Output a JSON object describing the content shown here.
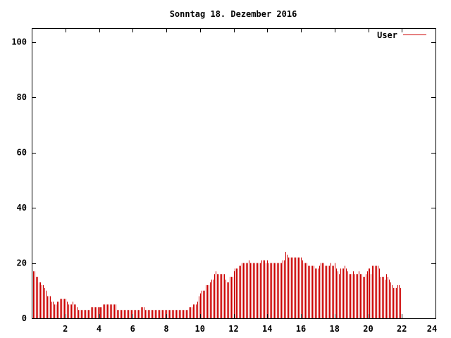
{
  "chart_data": {
    "type": "bar",
    "title": "Sonntag 18. Dezember 2016",
    "xlabel": "",
    "ylabel": "",
    "xlim": [
      0,
      24
    ],
    "ylim": [
      0,
      105
    ],
    "x_ticks": [
      2,
      4,
      6,
      8,
      10,
      12,
      14,
      16,
      18,
      20,
      22,
      24
    ],
    "x_tick_labels": [
      "2",
      "4",
      "6",
      "8",
      "10",
      "12",
      "14",
      "16",
      "18",
      "20",
      "22",
      "24"
    ],
    "y_ticks": [
      0,
      20,
      40,
      60,
      80,
      100
    ],
    "y_tick_labels": [
      "0",
      "20",
      "40",
      "60",
      "80",
      "100"
    ],
    "grid": false,
    "legend_position": "top-right",
    "series": [
      {
        "name": "User",
        "color": "#cc0000",
        "interval_minutes": 5,
        "values": [
          17,
          17,
          15,
          15,
          13,
          13,
          12,
          12,
          11,
          10,
          8,
          8,
          8,
          6,
          6,
          5,
          5,
          6,
          6,
          7,
          7,
          7,
          7,
          7,
          6,
          5,
          5,
          5,
          6,
          5,
          5,
          4,
          3,
          3,
          3,
          3,
          3,
          3,
          3,
          3,
          3,
          4,
          4,
          4,
          4,
          4,
          4,
          4,
          4,
          4,
          5,
          5,
          5,
          5,
          5,
          5,
          5,
          5,
          5,
          5,
          3,
          3,
          3,
          3,
          3,
          3,
          3,
          3,
          3,
          3,
          3,
          3,
          3,
          3,
          3,
          3,
          3,
          4,
          4,
          4,
          3,
          3,
          3,
          3,
          3,
          3,
          3,
          3,
          3,
          3,
          3,
          3,
          3,
          3,
          3,
          3,
          3,
          3,
          3,
          3,
          3,
          3,
          3,
          3,
          3,
          3,
          3,
          3,
          3,
          3,
          3,
          4,
          4,
          4,
          5,
          5,
          5,
          6,
          8,
          9,
          10,
          10,
          10,
          12,
          12,
          12,
          13,
          14,
          14,
          16,
          17,
          16,
          16,
          16,
          16,
          16,
          16,
          14,
          13,
          13,
          15,
          15,
          15,
          17,
          18,
          18,
          18,
          19,
          19,
          20,
          20,
          20,
          20,
          20,
          21,
          20,
          20,
          20,
          20,
          20,
          20,
          20,
          20,
          21,
          21,
          21,
          20,
          21,
          20,
          20,
          20,
          20,
          20,
          20,
          20,
          20,
          20,
          20,
          21,
          21,
          24,
          23,
          22,
          22,
          22,
          22,
          22,
          22,
          22,
          22,
          22,
          22,
          21,
          20,
          20,
          20,
          19,
          19,
          19,
          19,
          19,
          18,
          18,
          18,
          19,
          20,
          20,
          20,
          19,
          19,
          19,
          19,
          20,
          19,
          19,
          20,
          18,
          17,
          16,
          18,
          18,
          18,
          19,
          18,
          17,
          16,
          16,
          16,
          17,
          16,
          16,
          16,
          17,
          16,
          16,
          15,
          15,
          16,
          17,
          18,
          18,
          16,
          19,
          19,
          19,
          19,
          19,
          18,
          15,
          15,
          15,
          14,
          16,
          15,
          14,
          13,
          12,
          11,
          11,
          11,
          12,
          12,
          11
        ]
      }
    ]
  }
}
